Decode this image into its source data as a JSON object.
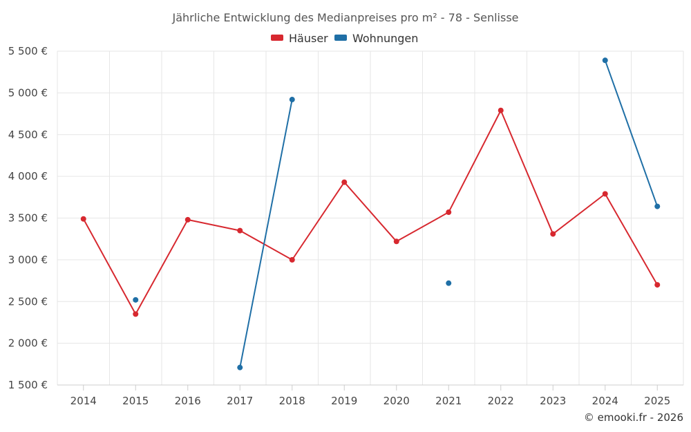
{
  "chart_data": {
    "type": "line",
    "title": "Jährliche Entwicklung des Medianpreises pro m² - 78 - Senlisse",
    "categories": [
      "2014",
      "2015",
      "2016",
      "2017",
      "2018",
      "2019",
      "2020",
      "2021",
      "2022",
      "2023",
      "2024",
      "2025"
    ],
    "ylim": [
      1500,
      5500
    ],
    "y_ticks": [
      1500,
      2000,
      2500,
      3000,
      3500,
      4000,
      4500,
      5000,
      5500
    ],
    "y_tick_labels": [
      "1 500 €",
      "2 000 €",
      "2 500 €",
      "3 000 €",
      "3 500 €",
      "4 000 €",
      "4 500 €",
      "5 000 €",
      "5 500 €"
    ],
    "grid": true,
    "legend_position": "top-center",
    "series": [
      {
        "name": "Häuser",
        "color": "#d7282f",
        "values": [
          3490,
          2350,
          3480,
          3350,
          3000,
          3930,
          3220,
          3570,
          4790,
          3310,
          3790,
          2700
        ]
      },
      {
        "name": "Wohnungen",
        "color": "#1f6fa6",
        "values": [
          null,
          2520,
          null,
          1710,
          4920,
          null,
          null,
          2720,
          null,
          null,
          5390,
          3640
        ]
      }
    ]
  },
  "credit": "© emooki.fr - 2026"
}
